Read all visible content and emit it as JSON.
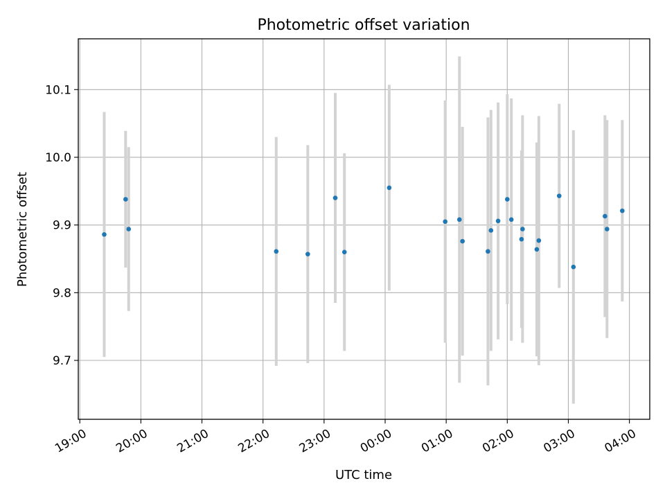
{
  "chart_data": {
    "type": "scatter",
    "title": "Photometric offset variation",
    "xlabel": "UTC time",
    "ylabel": "Photometric offset",
    "grid": true,
    "legend": "none",
    "x_ticks": [
      "19:00",
      "20:00",
      "21:00",
      "22:00",
      "23:00",
      "00:00",
      "01:00",
      "02:00",
      "03:00",
      "04:00"
    ],
    "y_ticks": [
      9.7,
      9.8,
      9.9,
      10.0,
      10.1
    ],
    "y_tick_labels": [
      "9.7",
      "9.8",
      "9.9",
      "10.0",
      "10.1"
    ],
    "xlim": [
      "19:00",
      "04:20"
    ],
    "ylim": [
      9.613,
      10.175
    ],
    "colors": {
      "point": "#1f77b4",
      "errorbar": "#d3d3d3",
      "grid": "#b0b0b0"
    },
    "points": [
      {
        "t": "19:24",
        "y": 9.886,
        "err": 0.181
      },
      {
        "t": "19:45",
        "y": 9.938,
        "err": 0.101
      },
      {
        "t": "19:48",
        "y": 9.894,
        "err": 0.121
      },
      {
        "t": "22:13",
        "y": 9.861,
        "err": 0.169
      },
      {
        "t": "22:44",
        "y": 9.857,
        "err": 0.161
      },
      {
        "t": "23:11",
        "y": 9.94,
        "err": 0.155
      },
      {
        "t": "23:20",
        "y": 9.86,
        "err": 0.146
      },
      {
        "t": "00:04",
        "y": 9.955,
        "err": 0.152
      },
      {
        "t": "00:59",
        "y": 9.905,
        "err": 0.179
      },
      {
        "t": "01:13",
        "y": 9.908,
        "err": 0.241
      },
      {
        "t": "01:16",
        "y": 9.876,
        "err": 0.169
      },
      {
        "t": "01:41",
        "y": 9.861,
        "err": 0.198
      },
      {
        "t": "01:44",
        "y": 9.892,
        "err": 0.178
      },
      {
        "t": "01:51",
        "y": 9.906,
        "err": 0.175
      },
      {
        "t": "02:00",
        "y": 9.938,
        "err": 0.155
      },
      {
        "t": "02:04",
        "y": 9.908,
        "err": 0.179
      },
      {
        "t": "02:14",
        "y": 9.879,
        "err": 0.131
      },
      {
        "t": "02:15",
        "y": 9.894,
        "err": 0.168
      },
      {
        "t": "02:29",
        "y": 9.864,
        "err": 0.158
      },
      {
        "t": "02:31",
        "y": 9.877,
        "err": 0.184
      },
      {
        "t": "02:51",
        "y": 9.943,
        "err": 0.136
      },
      {
        "t": "03:05",
        "y": 9.838,
        "err": 0.202
      },
      {
        "t": "03:36",
        "y": 9.913,
        "err": 0.149
      },
      {
        "t": "03:38",
        "y": 9.894,
        "err": 0.161
      },
      {
        "t": "03:53",
        "y": 9.921,
        "err": 0.134
      }
    ]
  }
}
